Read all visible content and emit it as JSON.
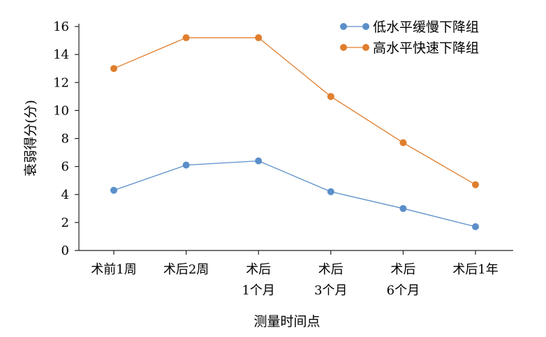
{
  "chart_data": {
    "type": "line",
    "title": "",
    "xlabel": "测量时间点",
    "ylabel": "衰弱得分(分)",
    "ylim": [
      0,
      16
    ],
    "yticks": [
      0,
      2,
      4,
      6,
      8,
      10,
      12,
      14,
      16
    ],
    "grid": false,
    "legend_position": "top-right",
    "categories": [
      [
        "术前1周"
      ],
      [
        "术后2周"
      ],
      [
        "术后",
        "1个月"
      ],
      [
        "术后",
        "3个月"
      ],
      [
        "术后",
        "6个月"
      ],
      [
        "术后1年"
      ]
    ],
    "series": [
      {
        "name": "低水平缓慢下降组",
        "color": "#5b8fc9",
        "values": [
          4.3,
          6.1,
          6.4,
          4.2,
          3.0,
          1.7
        ]
      },
      {
        "name": "高水平快速下降组",
        "color": "#e07e2e",
        "values": [
          13.0,
          15.2,
          15.2,
          11.0,
          7.7,
          4.7
        ]
      }
    ]
  }
}
